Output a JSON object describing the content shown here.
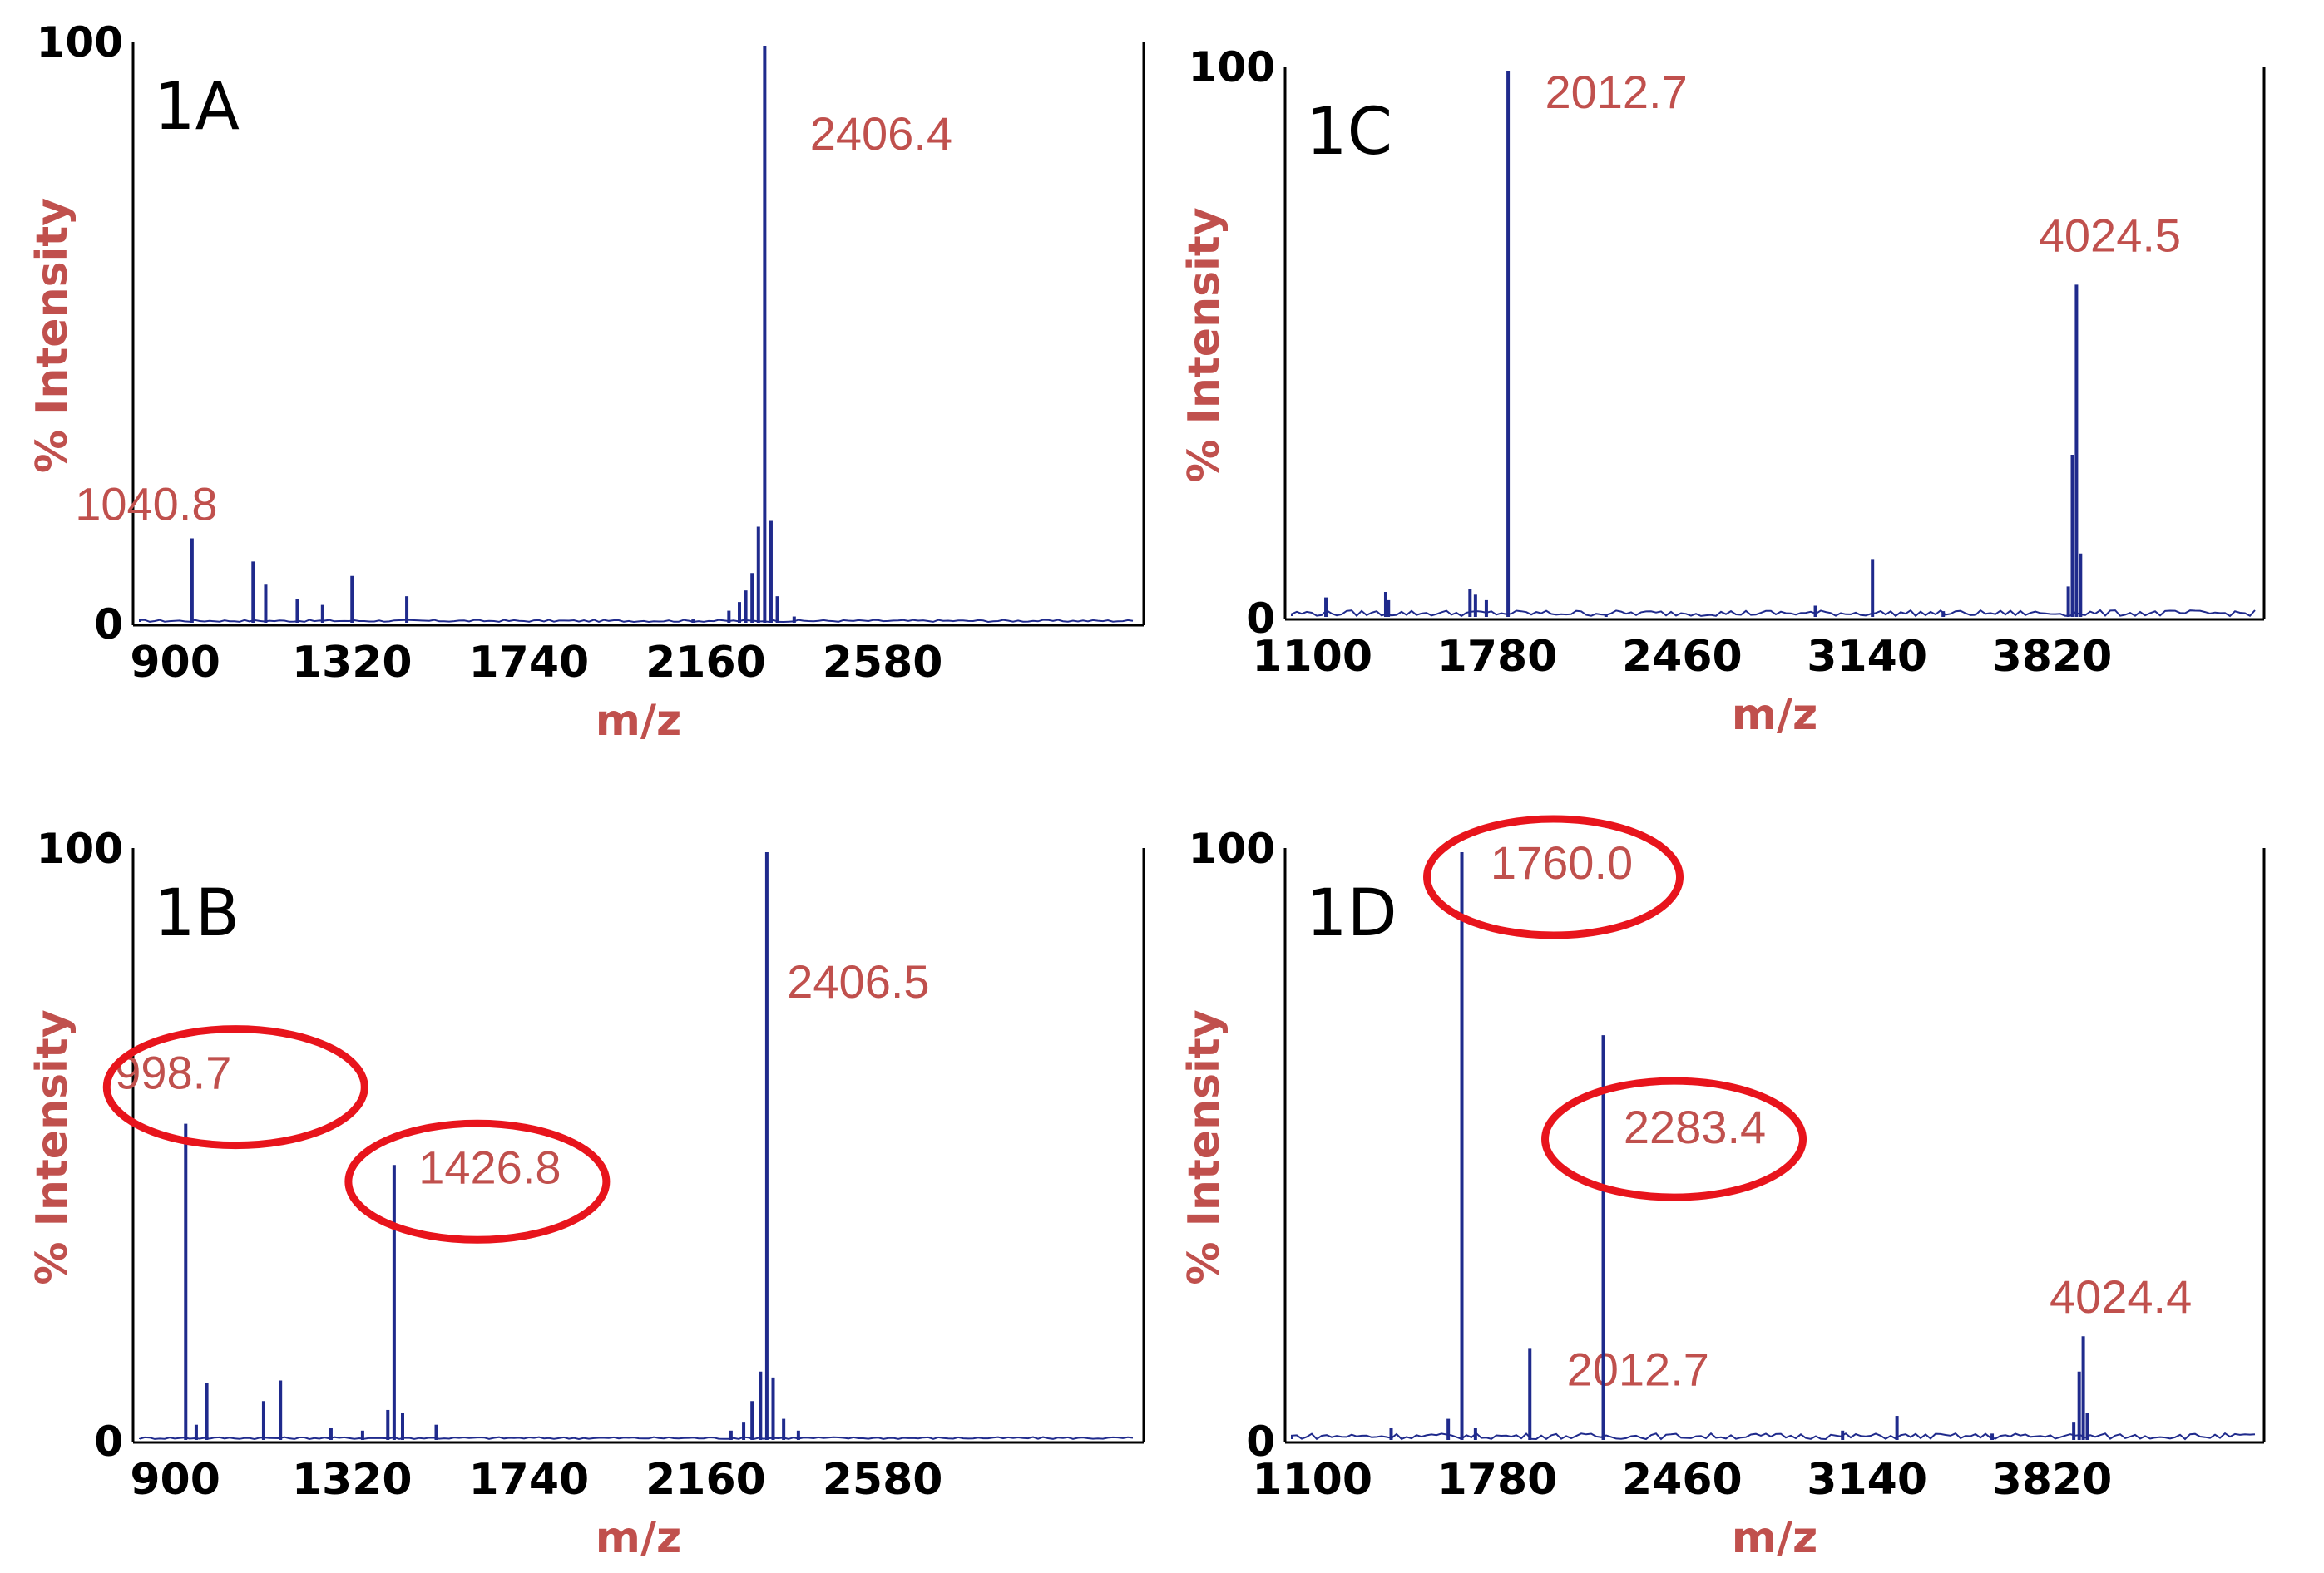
{
  "figure": {
    "colors": {
      "spectrum": "#1f2a8c",
      "label": "#c0504d",
      "highlight": "#e8141c",
      "axis": "#000000"
    }
  },
  "chart_data": [
    {
      "id": "1A",
      "type": "line",
      "panel_label": "1A",
      "xlabel": "m/z",
      "ylabel": "% Intensity",
      "xlim": [
        800,
        3200
      ],
      "ylim": [
        0,
        100
      ],
      "xticks": [
        "900",
        "1320",
        "1740",
        "2160",
        "2580"
      ],
      "yticks": [
        "0",
        "100"
      ],
      "peaks": [
        {
          "x": 940,
          "y": 15,
          "label": "1040.8",
          "highlight": false
        },
        {
          "x": 1085,
          "y": 11
        },
        {
          "x": 1115,
          "y": 7
        },
        {
          "x": 1190,
          "y": 4.5
        },
        {
          "x": 1250,
          "y": 3.5
        },
        {
          "x": 1320,
          "y": 8.5
        },
        {
          "x": 1450,
          "y": 5
        },
        {
          "x": 2130,
          "y": 1
        },
        {
          "x": 2215,
          "y": 2.5
        },
        {
          "x": 2240,
          "y": 4
        },
        {
          "x": 2255,
          "y": 6
        },
        {
          "x": 2270,
          "y": 9
        },
        {
          "x": 2285,
          "y": 17
        },
        {
          "x": 2300,
          "y": 100,
          "label": "2406.4",
          "highlight": false
        },
        {
          "x": 2315,
          "y": 18
        },
        {
          "x": 2330,
          "y": 5
        },
        {
          "x": 2370,
          "y": 1.5
        }
      ]
    },
    {
      "id": "1B",
      "type": "line",
      "panel_label": "1B",
      "xlabel": "m/z",
      "ylabel": "% Intensity",
      "xlim": [
        800,
        3200
      ],
      "ylim": [
        0,
        100
      ],
      "xticks": [
        "900",
        "1320",
        "1740",
        "2160",
        "2580"
      ],
      "yticks": [
        "0",
        "100"
      ],
      "peaks": [
        {
          "x": 925,
          "y": 54,
          "label": "998.7",
          "highlight": true
        },
        {
          "x": 950,
          "y": 3
        },
        {
          "x": 975,
          "y": 10
        },
        {
          "x": 1110,
          "y": 7
        },
        {
          "x": 1150,
          "y": 10.5
        },
        {
          "x": 1270,
          "y": 2.5
        },
        {
          "x": 1345,
          "y": 2
        },
        {
          "x": 1405,
          "y": 5.5
        },
        {
          "x": 1420,
          "y": 47,
          "label": "1426.8",
          "highlight": true
        },
        {
          "x": 1440,
          "y": 5
        },
        {
          "x": 1520,
          "y": 3
        },
        {
          "x": 2220,
          "y": 2
        },
        {
          "x": 2250,
          "y": 3.5
        },
        {
          "x": 2270,
          "y": 7
        },
        {
          "x": 2290,
          "y": 12
        },
        {
          "x": 2305,
          "y": 100,
          "label": "2406.5",
          "highlight": false
        },
        {
          "x": 2320,
          "y": 11
        },
        {
          "x": 2345,
          "y": 4
        },
        {
          "x": 2380,
          "y": 2
        }
      ]
    },
    {
      "id": "1C",
      "type": "line",
      "panel_label": "1C",
      "xlabel": "m/z",
      "ylabel": "% Intensity",
      "xlim": [
        1000,
        4600
      ],
      "ylim": [
        0,
        100
      ],
      "xticks": [
        "1100",
        "1780",
        "2460",
        "3140",
        "3820"
      ],
      "yticks": [
        "0",
        "100"
      ],
      "peaks": [
        {
          "x": 1150,
          "y": 4
        },
        {
          "x": 1370,
          "y": 5
        },
        {
          "x": 1380,
          "y": 3.5
        },
        {
          "x": 1680,
          "y": 5.5
        },
        {
          "x": 1700,
          "y": 4.5
        },
        {
          "x": 1740,
          "y": 3.5
        },
        {
          "x": 1820,
          "y": 100,
          "label": "2012.7",
          "highlight": false
        },
        {
          "x": 2180,
          "y": 1
        },
        {
          "x": 2950,
          "y": 2.5
        },
        {
          "x": 3160,
          "y": 11
        },
        {
          "x": 3420,
          "y": 1.5
        },
        {
          "x": 3880,
          "y": 6
        },
        {
          "x": 3895,
          "y": 30
        },
        {
          "x": 3910,
          "y": 61,
          "label": "4024.5",
          "highlight": false
        },
        {
          "x": 3925,
          "y": 12
        }
      ]
    },
    {
      "id": "1D",
      "type": "line",
      "panel_label": "1D",
      "xlabel": "m/z",
      "ylabel": "% Intensity",
      "xlim": [
        1000,
        4600
      ],
      "ylim": [
        0,
        100
      ],
      "xticks": [
        "1100",
        "1780",
        "2460",
        "3140",
        "3820"
      ],
      "yticks": [
        "0",
        "100"
      ],
      "peaks": [
        {
          "x": 1390,
          "y": 2.5
        },
        {
          "x": 1600,
          "y": 4
        },
        {
          "x": 1650,
          "y": 100,
          "label": "1760.0",
          "highlight": true
        },
        {
          "x": 1700,
          "y": 2.5
        },
        {
          "x": 1900,
          "y": 16,
          "label": "2012.7",
          "highlight": false
        },
        {
          "x": 2170,
          "y": 69,
          "label": "2283.4",
          "highlight": true
        },
        {
          "x": 3050,
          "y": 2
        },
        {
          "x": 3250,
          "y": 4.5
        },
        {
          "x": 3600,
          "y": 1.5
        },
        {
          "x": 3900,
          "y": 3.5
        },
        {
          "x": 3920,
          "y": 12
        },
        {
          "x": 3935,
          "y": 18,
          "label": "4024.4",
          "highlight": false
        },
        {
          "x": 3950,
          "y": 5
        }
      ]
    }
  ]
}
